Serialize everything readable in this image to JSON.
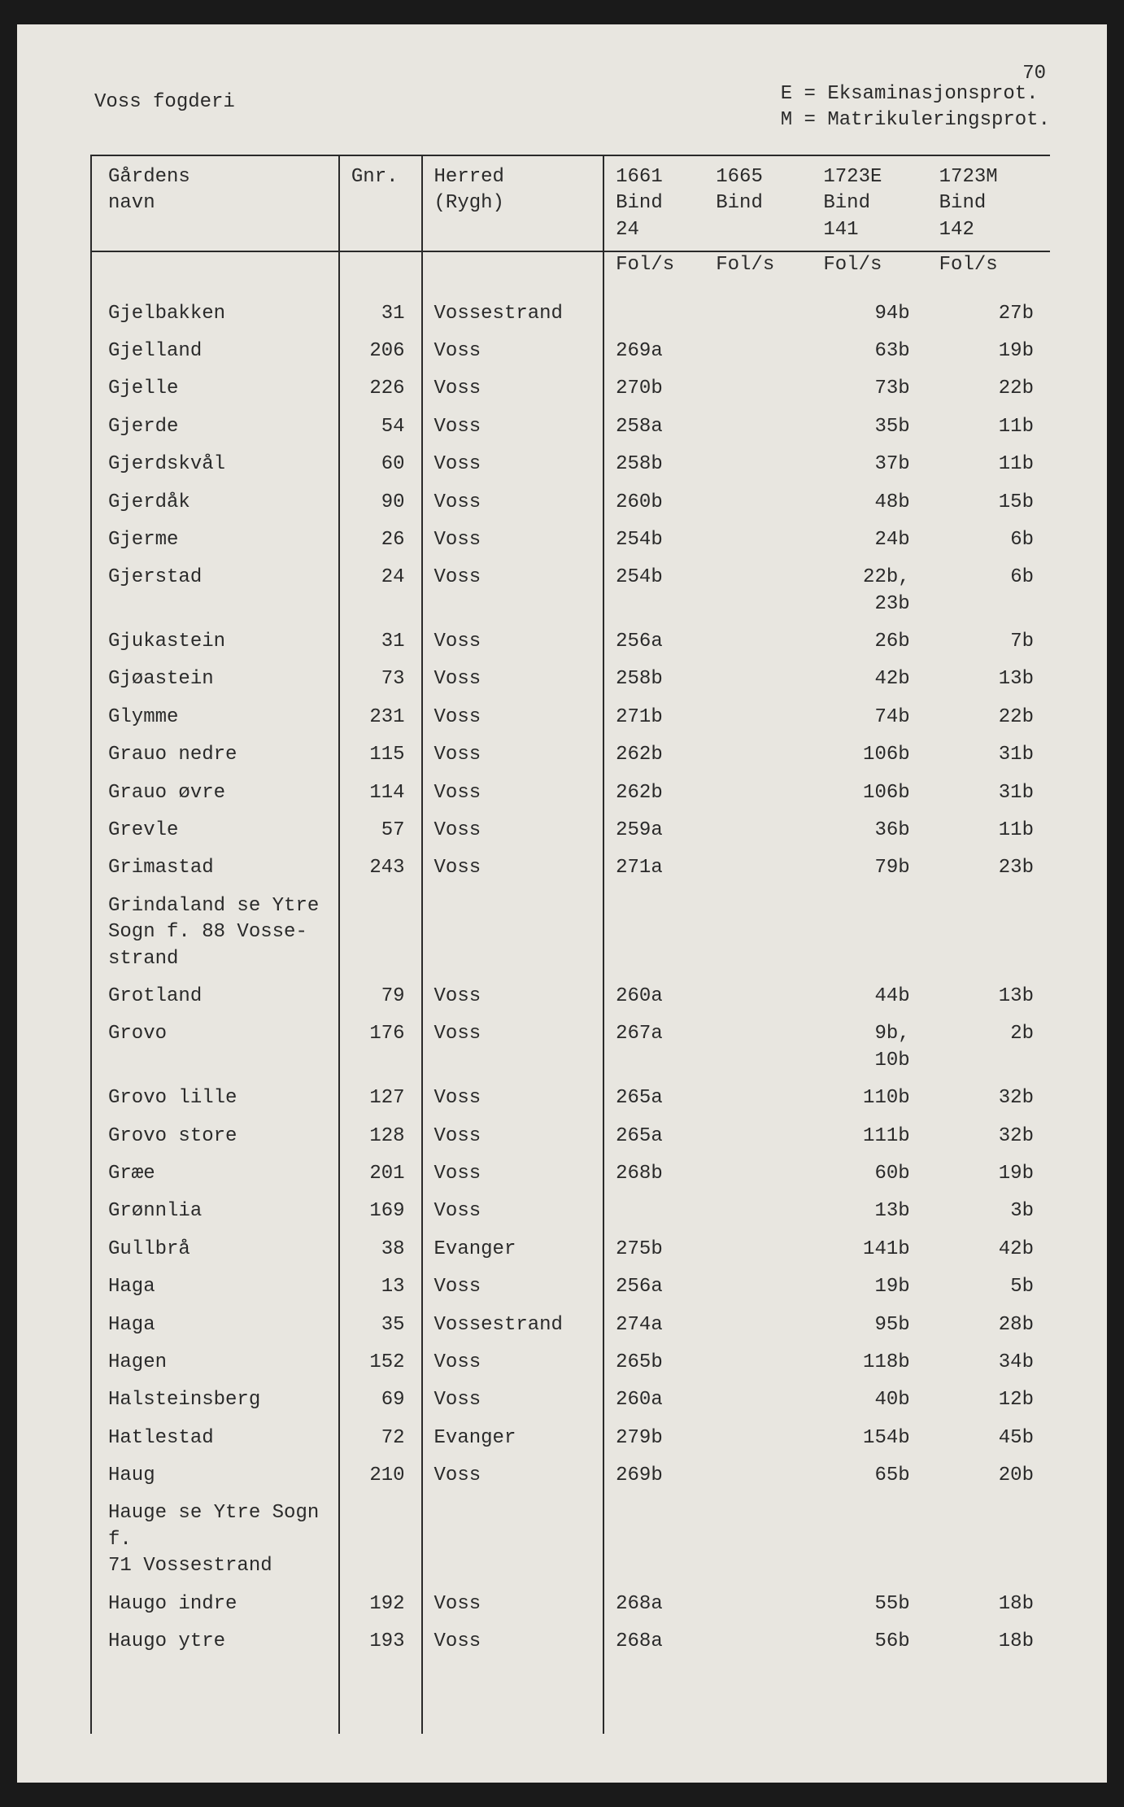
{
  "page_number": "70",
  "header": {
    "title": "Voss fogderi",
    "legend": [
      "E = Eksaminasjonsprot.",
      "M = Matrikuleringsprot."
    ]
  },
  "table": {
    "columns": {
      "name": {
        "line1": "Gårdens",
        "line2": "navn"
      },
      "gnr": {
        "line1": "Gnr."
      },
      "herred": {
        "line1": "Herred",
        "line2": "(Rygh)"
      },
      "c1661": {
        "line1": "1661",
        "line2": "Bind",
        "line3": "24",
        "sub": "Fol/s"
      },
      "c1665": {
        "line1": "1665",
        "line2": "Bind",
        "sub": "Fol/s"
      },
      "c1723e": {
        "line1": "1723E",
        "line2": "Bind",
        "line3": "141",
        "sub": "Fol/s"
      },
      "c1723m": {
        "line1": "1723M",
        "line2": "Bind",
        "line3": "142",
        "sub": "Fol/s"
      }
    },
    "rows": [
      {
        "name": "Gjelbakken",
        "gnr": "31",
        "herred": "Vossestrand",
        "c1661": "",
        "c1665": "",
        "c1723e": "94b",
        "c1723m": "27b"
      },
      {
        "name": "Gjelland",
        "gnr": "206",
        "herred": "Voss",
        "c1661": "269a",
        "c1665": "",
        "c1723e": "63b",
        "c1723m": "19b"
      },
      {
        "name": "Gjelle",
        "gnr": "226",
        "herred": "Voss",
        "c1661": "270b",
        "c1665": "",
        "c1723e": "73b",
        "c1723m": "22b"
      },
      {
        "name": "Gjerde",
        "gnr": "54",
        "herred": "Voss",
        "c1661": "258a",
        "c1665": "",
        "c1723e": "35b",
        "c1723m": "11b"
      },
      {
        "name": "Gjerdskvål",
        "gnr": "60",
        "herred": "Voss",
        "c1661": "258b",
        "c1665": "",
        "c1723e": "37b",
        "c1723m": "11b"
      },
      {
        "name": "Gjerdåk",
        "gnr": "90",
        "herred": "Voss",
        "c1661": "260b",
        "c1665": "",
        "c1723e": "48b",
        "c1723m": "15b"
      },
      {
        "name": "Gjerme",
        "gnr": "26",
        "herred": "Voss",
        "c1661": "254b",
        "c1665": "",
        "c1723e": "24b",
        "c1723m": "6b"
      },
      {
        "name": "Gjerstad",
        "gnr": "24",
        "herred": "Voss",
        "c1661": "254b",
        "c1665": "",
        "c1723e": "22b,\n23b",
        "c1723m": "6b"
      },
      {
        "name": "Gjukastein",
        "gnr": "31",
        "herred": "Voss",
        "c1661": "256a",
        "c1665": "",
        "c1723e": "26b",
        "c1723m": "7b"
      },
      {
        "name": "Gjøastein",
        "gnr": "73",
        "herred": "Voss",
        "c1661": "258b",
        "c1665": "",
        "c1723e": "42b",
        "c1723m": "13b"
      },
      {
        "name": "Glymme",
        "gnr": "231",
        "herred": "Voss",
        "c1661": "271b",
        "c1665": "",
        "c1723e": "74b",
        "c1723m": "22b"
      },
      {
        "name": "Grauo nedre",
        "gnr": "115",
        "herred": "Voss",
        "c1661": "262b",
        "c1665": "",
        "c1723e": "106b",
        "c1723m": "31b"
      },
      {
        "name": "Grauo øvre",
        "gnr": "114",
        "herred": "Voss",
        "c1661": "262b",
        "c1665": "",
        "c1723e": "106b",
        "c1723m": "31b"
      },
      {
        "name": "Grevle",
        "gnr": "57",
        "herred": "Voss",
        "c1661": "259a",
        "c1665": "",
        "c1723e": "36b",
        "c1723m": "11b"
      },
      {
        "name": "Grimastad",
        "gnr": "243",
        "herred": "Voss",
        "c1661": "271a",
        "c1665": "",
        "c1723e": "79b",
        "c1723m": "23b"
      },
      {
        "name": "Grindaland se Ytre\nSogn f. 88 Vosse-\nstrand",
        "gnr": "",
        "herred": "",
        "c1661": "",
        "c1665": "",
        "c1723e": "",
        "c1723m": ""
      },
      {
        "name": "Grotland",
        "gnr": "79",
        "herred": "Voss",
        "c1661": "260a",
        "c1665": "",
        "c1723e": "44b",
        "c1723m": "13b"
      },
      {
        "name": "Grovo",
        "gnr": "176",
        "herred": "Voss",
        "c1661": "267a",
        "c1665": "",
        "c1723e": "9b,\n10b",
        "c1723m": "2b"
      },
      {
        "name": "Grovo lille",
        "gnr": "127",
        "herred": "Voss",
        "c1661": "265a",
        "c1665": "",
        "c1723e": "110b",
        "c1723m": "32b"
      },
      {
        "name": "Grovo store",
        "gnr": "128",
        "herred": "Voss",
        "c1661": "265a",
        "c1665": "",
        "c1723e": "111b",
        "c1723m": "32b"
      },
      {
        "name": "Græe",
        "gnr": "201",
        "herred": "Voss",
        "c1661": "268b",
        "c1665": "",
        "c1723e": "60b",
        "c1723m": "19b"
      },
      {
        "name": "Grønnlia",
        "gnr": "169",
        "herred": "Voss",
        "c1661": "",
        "c1665": "",
        "c1723e": "13b",
        "c1723m": "3b"
      },
      {
        "name": "Gullbrå",
        "gnr": "38",
        "herred": "Evanger",
        "c1661": "275b",
        "c1665": "",
        "c1723e": "141b",
        "c1723m": "42b"
      },
      {
        "name": "Haga",
        "gnr": "13",
        "herred": "Voss",
        "c1661": "256a",
        "c1665": "",
        "c1723e": "19b",
        "c1723m": "5b"
      },
      {
        "name": "Haga",
        "gnr": "35",
        "herred": "Vossestrand",
        "c1661": "274a",
        "c1665": "",
        "c1723e": "95b",
        "c1723m": "28b"
      },
      {
        "name": "Hagen",
        "gnr": "152",
        "herred": "Voss",
        "c1661": "265b",
        "c1665": "",
        "c1723e": "118b",
        "c1723m": "34b"
      },
      {
        "name": "Halsteinsberg",
        "gnr": "69",
        "herred": "Voss",
        "c1661": "260a",
        "c1665": "",
        "c1723e": "40b",
        "c1723m": "12b"
      },
      {
        "name": "Hatlestad",
        "gnr": "72",
        "herred": "Evanger",
        "c1661": "279b",
        "c1665": "",
        "c1723e": "154b",
        "c1723m": "45b"
      },
      {
        "name": "Haug",
        "gnr": "210",
        "herred": "Voss",
        "c1661": "269b",
        "c1665": "",
        "c1723e": "65b",
        "c1723m": "20b"
      },
      {
        "name": "Hauge se Ytre Sogn f.\n71 Vossestrand",
        "gnr": "",
        "herred": "",
        "c1661": "",
        "c1665": "",
        "c1723e": "",
        "c1723m": ""
      },
      {
        "name": "Haugo indre",
        "gnr": "192",
        "herred": "Voss",
        "c1661": "268a",
        "c1665": "",
        "c1723e": "55b",
        "c1723m": "18b"
      },
      {
        "name": "Haugo ytre",
        "gnr": "193",
        "herred": "Voss",
        "c1661": "268a",
        "c1665": "",
        "c1723e": "56b",
        "c1723m": "18b"
      }
    ]
  }
}
